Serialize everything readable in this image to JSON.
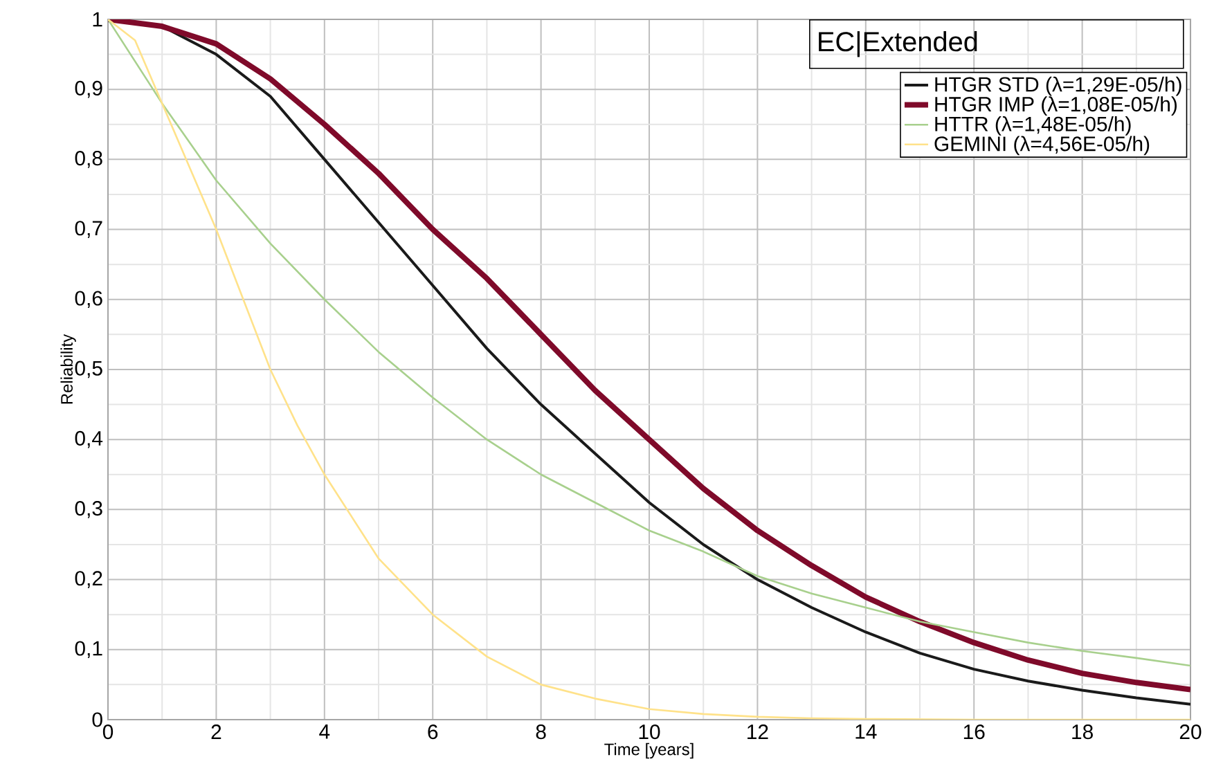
{
  "chart_data": {
    "type": "line",
    "xlabel": "Time [years]",
    "ylabel": "Reliability",
    "legend_title": "EC|Extended",
    "xlim": [
      0,
      20
    ],
    "xticks": [
      0,
      2,
      4,
      6,
      8,
      10,
      12,
      14,
      16,
      18,
      20
    ],
    "ylim": [
      0,
      1
    ],
    "yticks": [
      0,
      {
        "value": 0.1,
        "label": "0,1"
      },
      {
        "value": 0.2,
        "label": "0,2"
      },
      {
        "value": 0.3,
        "label": "0,3"
      },
      {
        "value": 0.4,
        "label": "0,4"
      },
      {
        "value": 0.5,
        "label": "0,5"
      },
      {
        "value": 0.6,
        "label": "0,6"
      },
      {
        "value": 0.7,
        "label": "0,7"
      },
      {
        "value": 0.8,
        "label": "0,8"
      },
      {
        "value": 0.9,
        "label": "0,9"
      },
      1
    ],
    "grid": true,
    "legend": "top right",
    "marker": "none",
    "line_style": "solid",
    "x": [
      0,
      1,
      2,
      3,
      4,
      5,
      6,
      7,
      8,
      9,
      10,
      11,
      12,
      13,
      14,
      15,
      16,
      17,
      18,
      19,
      20
    ],
    "series": [
      {
        "name": "HTGR STD (λ=1,29E-05/h)",
        "color": "#1a1a1a",
        "values": [
          1,
          0.99,
          0.95,
          0.89,
          0.8,
          0.71,
          0.62,
          0.53,
          0.45,
          0.38,
          0.31,
          0.25,
          0.2,
          0.16,
          0.125,
          0.095,
          0.072,
          0.055,
          0.042,
          0.031,
          0.022
        ]
      },
      {
        "name": "HTGR IMP (λ=1,08E-05/h)",
        "color": "#7f0a2a",
        "values": [
          1,
          0.99,
          0.965,
          0.915,
          0.85,
          0.78,
          0.7,
          0.63,
          0.55,
          0.47,
          0.4,
          0.33,
          0.27,
          0.22,
          0.175,
          0.14,
          0.11,
          0.085,
          0.066,
          0.053,
          0.043
        ]
      },
      {
        "name": "HTTR (λ=1,48E-05/h)",
        "color": "#a8d08d",
        "values": [
          1,
          0.88,
          0.77,
          0.68,
          0.6,
          0.525,
          0.46,
          0.4,
          0.35,
          0.31,
          0.27,
          0.24,
          0.205,
          0.18,
          0.16,
          0.14,
          0.125,
          0.11,
          0.098,
          0.088,
          0.077
        ]
      },
      {
        "name": "GEMINI (λ=4,56E-05/h)",
        "color": "#ffe28a",
        "x": [
          0,
          0.5,
          1,
          1.5,
          2,
          2.5,
          3,
          3.5,
          4,
          5,
          6,
          7,
          8,
          9,
          10,
          11,
          12,
          13,
          14,
          16,
          20
        ],
        "values": [
          1,
          0.97,
          0.88,
          0.79,
          0.7,
          0.6,
          0.5,
          0.42,
          0.35,
          0.23,
          0.15,
          0.09,
          0.05,
          0.03,
          0.015,
          0.008,
          0.004,
          0.002,
          0.001,
          0,
          0
        ]
      }
    ]
  }
}
